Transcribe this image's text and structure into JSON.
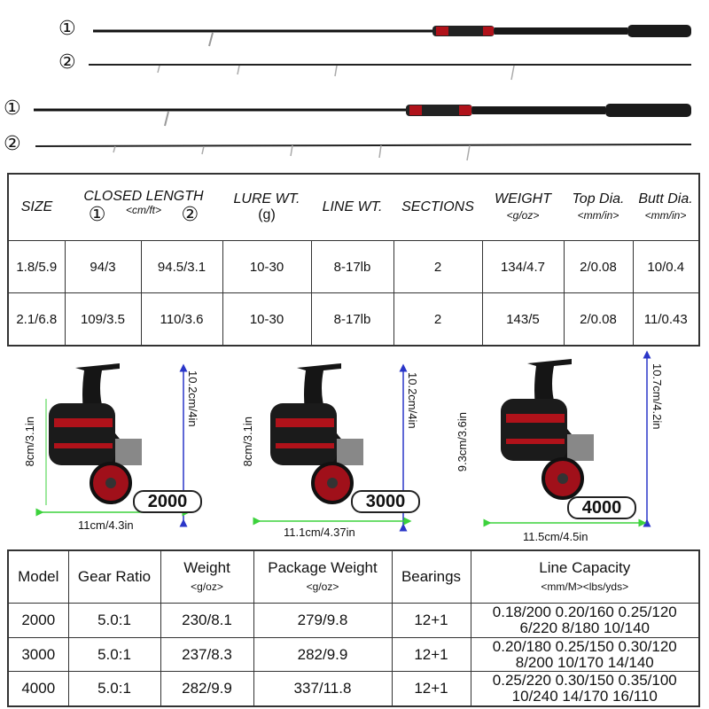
{
  "rods": {
    "label_1": "①",
    "label_2": "②"
  },
  "rod_table": {
    "headers": {
      "size": "SIZE",
      "closed_length": "CLOSED LENGTH",
      "closed_unit": "<cm/ft>",
      "mark_1": "①",
      "mark_2": "②",
      "lure": "LURE WT.",
      "lure_unit": "(g)",
      "line": "LINE WT.",
      "sections": "SECTIONS",
      "weight": "WEIGHT",
      "weight_unit": "<g/oz>",
      "top": "Top Dia.",
      "top_unit": "<mm/in>",
      "butt": "Butt Dia.",
      "butt_unit": "<mm/in>"
    },
    "rows": [
      [
        "1.8/5.9",
        "94/3",
        "94.5/3.1",
        "10-30",
        "8-17lb",
        "2",
        "134/4.7",
        "2/0.08",
        "10/0.4"
      ],
      [
        "2.1/6.8",
        "109/3.5",
        "110/3.6",
        "10-30",
        "8-17lb",
        "2",
        "143/5",
        "2/0.08",
        "11/0.43"
      ]
    ]
  },
  "reels": [
    {
      "model": "2000",
      "height": "8cm/3.1in",
      "total_height": "10.2cm/4in",
      "width": "11cm/4.3in"
    },
    {
      "model": "3000",
      "height": "8cm/3.1in",
      "total_height": "10.2cm/4in",
      "width": "11.1cm/4.37in"
    },
    {
      "model": "4000",
      "height": "9.3cm/3.6in",
      "total_height": "10.7cm/4.2in",
      "width": "11.5cm/4.5in"
    }
  ],
  "reel_table": {
    "headers": {
      "model": "Model",
      "gear": "Gear Ratio",
      "weight": "Weight",
      "weight_unit": "<g/oz>",
      "package": "Package Weight",
      "package_unit": "<g/oz>",
      "bearings": "Bearings",
      "line": "Line Capacity",
      "line_unit": "<mm/M><lbs/yds>"
    },
    "rows": [
      {
        "model": "2000",
        "gear": "5.0:1",
        "weight": "230/8.1",
        "package": "279/9.8",
        "bearings": "12+1",
        "line_1": "0.18/200 0.20/160 0.25/120",
        "line_2": "6/220 8/180 10/140"
      },
      {
        "model": "3000",
        "gear": "5.0:1",
        "weight": "237/8.3",
        "package": "282/9.9",
        "bearings": "12+1",
        "line_1": "0.20/180 0.25/150 0.30/120",
        "line_2": "8/200 10/170 14/140"
      },
      {
        "model": "4000",
        "gear": "5.0:1",
        "weight": "282/9.9",
        "package": "337/11.8",
        "bearings": "12+1",
        "line_1": "0.25/220 0.30/150 0.35/100",
        "line_2": "10/240 14/170 16/110"
      }
    ]
  },
  "colors": {
    "accent": "#c0141c",
    "arrow_blue": "#2a36c8",
    "arrow_green": "#3cd23c"
  }
}
